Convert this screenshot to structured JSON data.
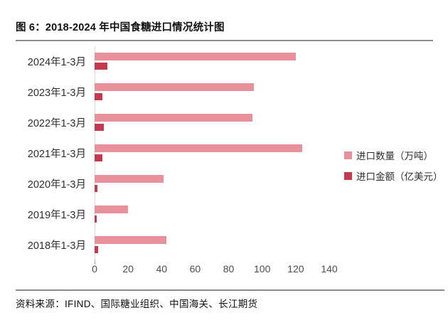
{
  "figure": {
    "title": "图 6：2018-2024 年中国食糖进口情况统计图",
    "source": "资料来源：IFIND、国际糖业组织、中国海关、长江期货"
  },
  "colors": {
    "quantity_bar": "#E8909C",
    "amount_bar": "#C23A50",
    "rule": "#8C8C8C",
    "axis_line": "#D9D9D9",
    "tick_text": "#4D4D4D"
  },
  "chart_data": {
    "type": "bar",
    "orientation": "horizontal",
    "title": "2018-2024 年中国食糖进口情况统计图",
    "categories": [
      "2024年1-3月",
      "2023年1-3月",
      "2022年1-3月",
      "2021年1-3月",
      "2020年1-3月",
      "2019年1-3月",
      "2018年1-3月"
    ],
    "series": [
      {
        "name": "进口数量（万吨）",
        "color": "#E8909C",
        "values": [
          120,
          95,
          94,
          124,
          41,
          20,
          43
        ]
      },
      {
        "name": "进口金额（亿美元）",
        "color": "#C23A50",
        "values": [
          7.8,
          4.8,
          5.4,
          4.7,
          1.7,
          1.2,
          2.1
        ]
      }
    ],
    "xlim": [
      0,
      140
    ],
    "xticks": [
      0,
      20,
      40,
      60,
      80,
      100,
      120,
      140
    ],
    "xlabel": "",
    "ylabel": "",
    "grid": false,
    "legend_position": "right"
  }
}
